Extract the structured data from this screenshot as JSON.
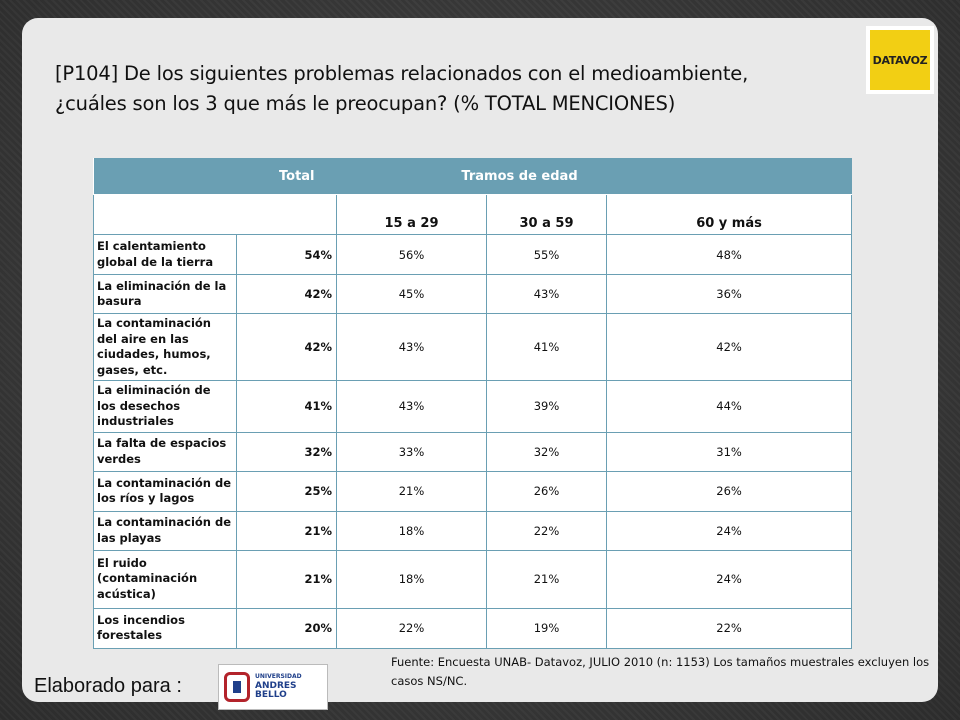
{
  "title": {
    "line1": "[P104] De los siguientes problemas relacionados con el medioambiente,",
    "line2": "¿cuáles son los 3 que más le preocupan? (% TOTAL MENCIONES)"
  },
  "brand_logo": {
    "text": "DATAVOZ",
    "color": "#f2cf14"
  },
  "table": {
    "header_total": "Total",
    "header_group": "Tramos de edad",
    "age_groups": [
      "15 a 29",
      "30 a 59",
      "60 y más"
    ],
    "header_color": "#6a9fb3",
    "rows": [
      {
        "label": "El calentamiento global de la tierra",
        "total": "54%",
        "values": [
          "56%",
          "55%",
          "48%"
        ]
      },
      {
        "label": "La eliminación de la basura",
        "total": "42%",
        "values": [
          "45%",
          "43%",
          "36%"
        ]
      },
      {
        "label": "La contaminación del aire en las ciudades, humos, gases, etc.",
        "total": "42%",
        "values": [
          "43%",
          "41%",
          "42%"
        ]
      },
      {
        "label": "La eliminación de los desechos industriales",
        "total": "41%",
        "values": [
          "43%",
          "39%",
          "44%"
        ]
      },
      {
        "label": "La falta de espacios verdes",
        "total": "32%",
        "values": [
          "33%",
          "32%",
          "31%"
        ]
      },
      {
        "label": "La contaminación de los ríos y lagos",
        "total": "25%",
        "values": [
          "21%",
          "26%",
          "26%"
        ]
      },
      {
        "label": "La contaminación de las playas",
        "total": "21%",
        "values": [
          "18%",
          "22%",
          "24%"
        ]
      },
      {
        "label": "El ruido (contaminación acústica)",
        "total": "21%",
        "values": [
          "18%",
          "21%",
          "24%"
        ]
      },
      {
        "label": "Los incendios forestales",
        "total": "20%",
        "values": [
          "22%",
          "19%",
          "22%"
        ]
      }
    ]
  },
  "source": "Fuente: Encuesta UNAB- Datavoz, JULIO 2010 (n: 1153) Los tamaños muestrales excluyen los casos NS/NC.",
  "footer": {
    "label": "Elaborado para :",
    "unab_logo": {
      "small": "UNIVERSIDAD",
      "big": "ANDRES BELLO",
      "icon": "unab-emblem-icon"
    }
  }
}
